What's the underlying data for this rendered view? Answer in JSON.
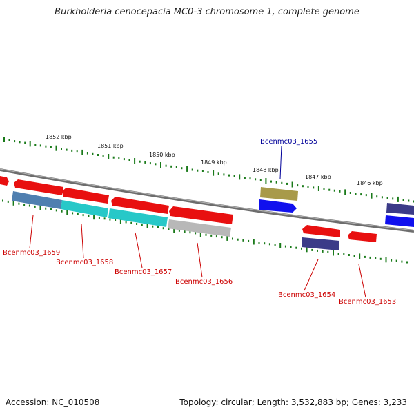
{
  "title": "Burkholderia cenocepacia MC0-3 chromosome 1, complete genome",
  "ticks": [
    "1852 kbp",
    "1851 kbp",
    "1850 kbp",
    "1849 kbp",
    "1848 kbp",
    "1847 kbp",
    "1846 kbp"
  ],
  "genes": [
    {
      "id": "g1659",
      "label": "Bcenmc03_1659",
      "strand": "lower",
      "color": "#4f7fb0"
    },
    {
      "id": "g1658",
      "label": "Bcenmc03_1658",
      "strand": "lower",
      "color": "#27c8c8"
    },
    {
      "id": "g1657",
      "label": "Bcenmc03_1657",
      "strand": "lower",
      "color": "#27c8c8"
    },
    {
      "id": "g1656",
      "label": "Bcenmc03_1656",
      "strand": "lower",
      "color": "#b8b8b8"
    },
    {
      "id": "g1655",
      "label": "Bcenmc03_1655",
      "strand": "upper",
      "color": "#a89a4a"
    },
    {
      "id": "g1654",
      "label": "Bcenmc03_1654",
      "strand": "lower",
      "color": "#3b3b88"
    },
    {
      "id": "g1653",
      "label": "Bcenmc03_1653",
      "strand": "lower",
      "color": "#ee1111"
    }
  ],
  "footer": {
    "accession": "Accession: NC_010508",
    "topology": "Topology: circular; Length: 3,532,883 bp; Genes: 3,233"
  }
}
